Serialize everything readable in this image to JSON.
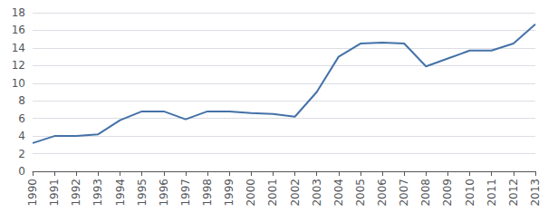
{
  "chart_data": {
    "type": "line",
    "categories": [
      "1990",
      "1991",
      "1992",
      "1993",
      "1994",
      "1995",
      "1996",
      "1997",
      "1998",
      "1999",
      "2000",
      "2001",
      "2002",
      "2003",
      "2004",
      "2005",
      "2006",
      "2007",
      "2008",
      "2009",
      "2010",
      "2011",
      "2012",
      "2013"
    ],
    "values": [
      3.2,
      4.0,
      4.0,
      4.2,
      5.8,
      6.8,
      6.8,
      5.9,
      6.8,
      6.8,
      6.6,
      6.5,
      6.2,
      9.0,
      13.0,
      14.5,
      14.6,
      14.5,
      11.9,
      12.8,
      13.7,
      13.7,
      14.5,
      16.7
    ],
    "color": "#4472a8",
    "ylim": [
      0,
      18
    ],
    "yticks": [
      0,
      2,
      4,
      6,
      8,
      10,
      12,
      14,
      16,
      18
    ],
    "grid": true
  }
}
